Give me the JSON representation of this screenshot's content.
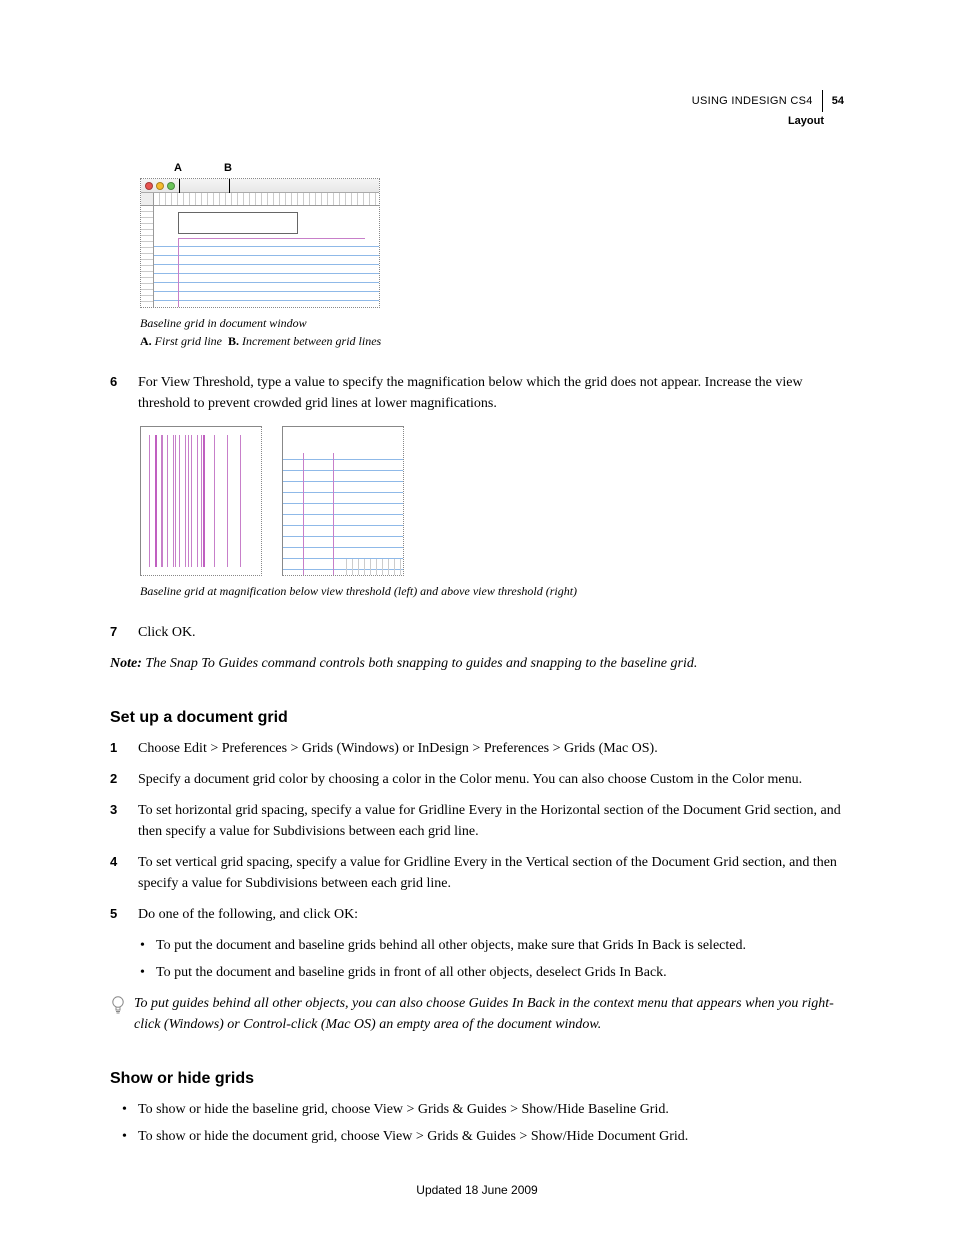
{
  "header": {
    "doc_title": "USING INDESIGN CS4",
    "section": "Layout",
    "page_number": "54"
  },
  "figure1": {
    "label_a": "A",
    "label_b": "B",
    "mac_dots": [
      "#e8534f",
      "#f5bb2f",
      "#6ac45a"
    ],
    "caption_title": "Baseline grid in document window",
    "key_a_label": "A.",
    "key_a_text": "First grid line",
    "key_b_label": "B.",
    "key_b_text": "Increment between grid lines",
    "baseline_color": "#8fb9e8",
    "margin_color": "#c77fc9"
  },
  "steps_top": [
    {
      "num": "6",
      "text": "For View Threshold, type a value to specify the magnification below which the grid does not appear. Increase the view threshold to prevent crowded grid lines at lower magnifications."
    }
  ],
  "figure2": {
    "caption": "Baseline grid at magnification below view threshold (left) and above view threshold (right)",
    "doc_grid_color": "#c77fc9",
    "baseline_color": "#8fb9e8"
  },
  "steps_after_fig2": [
    {
      "num": "7",
      "text": "Click OK."
    }
  ],
  "note": {
    "label": "Note:",
    "text": "The Snap To Guides command controls both snapping to guides and snapping to the baseline grid."
  },
  "section2": {
    "heading": "Set up a document grid",
    "steps": [
      {
        "num": "1",
        "text": "Choose Edit > Preferences > Grids (Windows) or InDesign > Preferences > Grids (Mac OS)."
      },
      {
        "num": "2",
        "text": "Specify a document grid color by choosing a color in the Color menu. You can also choose Custom in the Color menu."
      },
      {
        "num": "3",
        "text": "To set horizontal grid spacing, specify a value for Gridline Every in the Horizontal section of the Document Grid section, and then specify a value for Subdivisions between each grid line."
      },
      {
        "num": "4",
        "text": "To set vertical grid spacing, specify a value for Gridline Every in the Vertical section of the Document Grid section, and then specify a value for Subdivisions between each grid line."
      },
      {
        "num": "5",
        "text": "Do one of the following, and click OK:"
      }
    ],
    "sub_bullets": [
      "To put the document and baseline grids behind all other objects, make sure that Grids In Back is selected.",
      "To put the document and baseline grids in front of all other objects, deselect Grids In Back."
    ],
    "tip": "To put guides behind all other objects, you can also choose Guides In Back in the context menu that appears when you right-click (Windows) or Control-click (Mac OS) an empty area of the document window."
  },
  "section3": {
    "heading": "Show or hide grids",
    "bullets": [
      "To show or hide the baseline grid, choose View > Grids & Guides > Show/Hide Baseline Grid.",
      "To show or hide the document grid, choose View > Grids & Guides > Show/Hide Document Grid."
    ]
  },
  "footer": {
    "updated": "Updated 18 June 2009"
  }
}
